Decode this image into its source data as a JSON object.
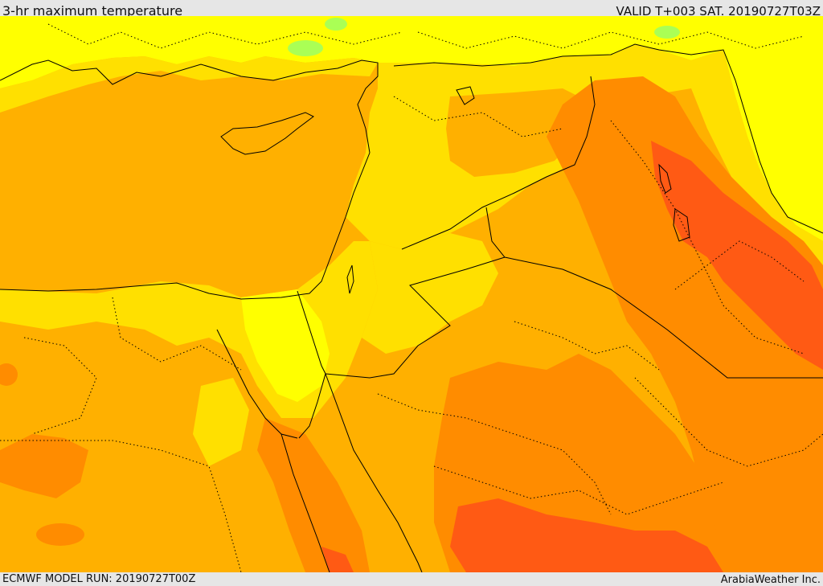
{
  "header": {
    "title": "3-hr maximum temperature",
    "valid": "VALID T+003 SAT. 20190727T03Z"
  },
  "footer": {
    "model_run": "ECMWF MODEL RUN: 20190727T00Z",
    "credit": "ArabiaWeather Inc."
  },
  "palette": {
    "light_green": "#aaff55",
    "yellow": "#ffff00",
    "gold": "#ffe000",
    "amber": "#ffb000",
    "orange": "#ff8c00",
    "red_orange": "#ff5a14",
    "border": "#000000"
  }
}
